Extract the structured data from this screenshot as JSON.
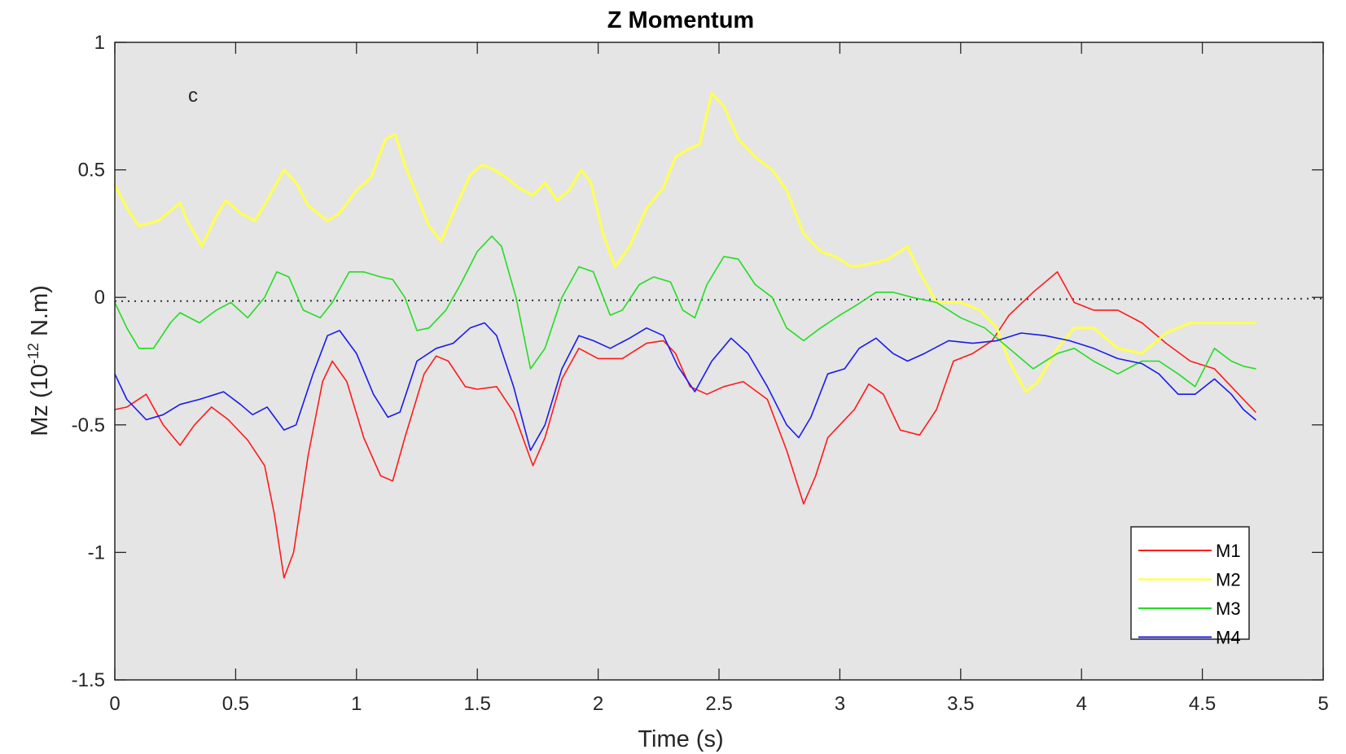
{
  "chart_data": {
    "type": "line",
    "title": "Z Momentum",
    "xlabel": "Time (s)",
    "ylabel": {
      "base": "Mz (10",
      "sup": "-12",
      "rest": " N.m)"
    },
    "xlim": [
      0,
      5
    ],
    "ylim": [
      -1.5,
      1
    ],
    "xticks": [
      0,
      0.5,
      1,
      1.5,
      2,
      2.5,
      3,
      3.5,
      4,
      4.5,
      5
    ],
    "xtick_labels": [
      "0",
      "0.5",
      "1",
      "1.5",
      "2",
      "2.5",
      "3",
      "3.5",
      "4",
      "4.5",
      "5"
    ],
    "yticks": [
      -1.5,
      -1,
      -0.5,
      0,
      0.5,
      1
    ],
    "ytick_labels": [
      "-1.5",
      "-1",
      "-0.5",
      "0",
      "0.5",
      "1"
    ],
    "grid": false,
    "background": "#e5e5e5",
    "annotation": "c",
    "reference_line": {
      "y0": -0.015,
      "y1": -0.005,
      "style": "dotted",
      "color": "#333333"
    },
    "legend": {
      "position": "bottom-right"
    },
    "series": [
      {
        "name": "M1",
        "color": "#ff1a1a",
        "width": 1.6,
        "points": [
          [
            0,
            -0.44
          ],
          [
            0.05,
            -0.43
          ],
          [
            0.13,
            -0.38
          ],
          [
            0.2,
            -0.5
          ],
          [
            0.27,
            -0.58
          ],
          [
            0.33,
            -0.5
          ],
          [
            0.4,
            -0.43
          ],
          [
            0.47,
            -0.48
          ],
          [
            0.55,
            -0.56
          ],
          [
            0.62,
            -0.66
          ],
          [
            0.66,
            -0.85
          ],
          [
            0.7,
            -1.1
          ],
          [
            0.74,
            -1.0
          ],
          [
            0.8,
            -0.62
          ],
          [
            0.86,
            -0.33
          ],
          [
            0.9,
            -0.25
          ],
          [
            0.96,
            -0.33
          ],
          [
            1.03,
            -0.55
          ],
          [
            1.1,
            -0.7
          ],
          [
            1.15,
            -0.72
          ],
          [
            1.2,
            -0.55
          ],
          [
            1.28,
            -0.3
          ],
          [
            1.33,
            -0.23
          ],
          [
            1.38,
            -0.25
          ],
          [
            1.45,
            -0.35
          ],
          [
            1.5,
            -0.36
          ],
          [
            1.58,
            -0.35
          ],
          [
            1.65,
            -0.45
          ],
          [
            1.73,
            -0.66
          ],
          [
            1.78,
            -0.55
          ],
          [
            1.85,
            -0.32
          ],
          [
            1.92,
            -0.2
          ],
          [
            2.0,
            -0.24
          ],
          [
            2.1,
            -0.24
          ],
          [
            2.2,
            -0.18
          ],
          [
            2.27,
            -0.17
          ],
          [
            2.32,
            -0.22
          ],
          [
            2.38,
            -0.35
          ],
          [
            2.45,
            -0.38
          ],
          [
            2.52,
            -0.35
          ],
          [
            2.6,
            -0.33
          ],
          [
            2.7,
            -0.4
          ],
          [
            2.78,
            -0.6
          ],
          [
            2.85,
            -0.81
          ],
          [
            2.9,
            -0.7
          ],
          [
            2.95,
            -0.55
          ],
          [
            3.0,
            -0.5
          ],
          [
            3.06,
            -0.44
          ],
          [
            3.12,
            -0.34
          ],
          [
            3.18,
            -0.38
          ],
          [
            3.25,
            -0.52
          ],
          [
            3.33,
            -0.54
          ],
          [
            3.4,
            -0.44
          ],
          [
            3.47,
            -0.25
          ],
          [
            3.55,
            -0.22
          ],
          [
            3.63,
            -0.17
          ],
          [
            3.7,
            -0.07
          ],
          [
            3.8,
            0.02
          ],
          [
            3.9,
            0.1
          ],
          [
            3.97,
            -0.02
          ],
          [
            4.05,
            -0.05
          ],
          [
            4.15,
            -0.05
          ],
          [
            4.25,
            -0.1
          ],
          [
            4.35,
            -0.18
          ],
          [
            4.45,
            -0.25
          ],
          [
            4.55,
            -0.28
          ],
          [
            4.65,
            -0.38
          ],
          [
            4.72,
            -0.45
          ]
        ]
      },
      {
        "name": "M2",
        "color": "#ffff55",
        "width": 3.2,
        "points": [
          [
            0,
            0.44
          ],
          [
            0.05,
            0.35
          ],
          [
            0.1,
            0.28
          ],
          [
            0.18,
            0.3
          ],
          [
            0.27,
            0.37
          ],
          [
            0.3,
            0.3
          ],
          [
            0.36,
            0.2
          ],
          [
            0.42,
            0.32
          ],
          [
            0.46,
            0.38
          ],
          [
            0.52,
            0.33
          ],
          [
            0.58,
            0.3
          ],
          [
            0.63,
            0.38
          ],
          [
            0.7,
            0.5
          ],
          [
            0.75,
            0.45
          ],
          [
            0.8,
            0.36
          ],
          [
            0.88,
            0.3
          ],
          [
            0.93,
            0.33
          ],
          [
            1.0,
            0.42
          ],
          [
            1.06,
            0.47
          ],
          [
            1.12,
            0.62
          ],
          [
            1.16,
            0.64
          ],
          [
            1.2,
            0.52
          ],
          [
            1.25,
            0.4
          ],
          [
            1.3,
            0.28
          ],
          [
            1.35,
            0.22
          ],
          [
            1.4,
            0.33
          ],
          [
            1.47,
            0.48
          ],
          [
            1.52,
            0.52
          ],
          [
            1.57,
            0.5
          ],
          [
            1.62,
            0.47
          ],
          [
            1.67,
            0.43
          ],
          [
            1.73,
            0.4
          ],
          [
            1.78,
            0.45
          ],
          [
            1.83,
            0.38
          ],
          [
            1.88,
            0.42
          ],
          [
            1.93,
            0.5
          ],
          [
            1.97,
            0.45
          ],
          [
            2.02,
            0.25
          ],
          [
            2.07,
            0.12
          ],
          [
            2.13,
            0.2
          ],
          [
            2.2,
            0.35
          ],
          [
            2.27,
            0.43
          ],
          [
            2.32,
            0.55
          ],
          [
            2.37,
            0.58
          ],
          [
            2.42,
            0.6
          ],
          [
            2.47,
            0.8
          ],
          [
            2.52,
            0.75
          ],
          [
            2.58,
            0.62
          ],
          [
            2.65,
            0.55
          ],
          [
            2.72,
            0.5
          ],
          [
            2.78,
            0.42
          ],
          [
            2.85,
            0.25
          ],
          [
            2.92,
            0.18
          ],
          [
            2.98,
            0.16
          ],
          [
            3.05,
            0.12
          ],
          [
            3.12,
            0.13
          ],
          [
            3.2,
            0.15
          ],
          [
            3.28,
            0.2
          ],
          [
            3.33,
            0.1
          ],
          [
            3.4,
            -0.02
          ],
          [
            3.5,
            -0.02
          ],
          [
            3.58,
            -0.05
          ],
          [
            3.65,
            -0.12
          ],
          [
            3.7,
            -0.25
          ],
          [
            3.77,
            -0.37
          ],
          [
            3.82,
            -0.33
          ],
          [
            3.9,
            -0.2
          ],
          [
            3.97,
            -0.12
          ],
          [
            4.05,
            -0.12
          ],
          [
            4.15,
            -0.2
          ],
          [
            4.25,
            -0.22
          ],
          [
            4.35,
            -0.14
          ],
          [
            4.45,
            -0.1
          ],
          [
            4.55,
            -0.1
          ],
          [
            4.65,
            -0.1
          ],
          [
            4.72,
            -0.1
          ]
        ]
      },
      {
        "name": "M3",
        "color": "#22dd22",
        "width": 1.6,
        "points": [
          [
            0,
            -0.02
          ],
          [
            0.05,
            -0.12
          ],
          [
            0.1,
            -0.2
          ],
          [
            0.16,
            -0.2
          ],
          [
            0.23,
            -0.1
          ],
          [
            0.27,
            -0.06
          ],
          [
            0.35,
            -0.1
          ],
          [
            0.42,
            -0.05
          ],
          [
            0.48,
            -0.02
          ],
          [
            0.55,
            -0.08
          ],
          [
            0.62,
            0.0
          ],
          [
            0.67,
            0.1
          ],
          [
            0.72,
            0.08
          ],
          [
            0.78,
            -0.05
          ],
          [
            0.85,
            -0.08
          ],
          [
            0.9,
            -0.02
          ],
          [
            0.97,
            0.1
          ],
          [
            1.03,
            0.1
          ],
          [
            1.1,
            0.08
          ],
          [
            1.15,
            0.07
          ],
          [
            1.2,
            0.0
          ],
          [
            1.25,
            -0.13
          ],
          [
            1.3,
            -0.12
          ],
          [
            1.37,
            -0.05
          ],
          [
            1.43,
            0.05
          ],
          [
            1.5,
            0.18
          ],
          [
            1.56,
            0.24
          ],
          [
            1.6,
            0.2
          ],
          [
            1.66,
            0.0
          ],
          [
            1.72,
            -0.28
          ],
          [
            1.78,
            -0.2
          ],
          [
            1.85,
            0.0
          ],
          [
            1.92,
            0.12
          ],
          [
            1.98,
            0.1
          ],
          [
            2.05,
            -0.07
          ],
          [
            2.1,
            -0.05
          ],
          [
            2.17,
            0.05
          ],
          [
            2.23,
            0.08
          ],
          [
            2.3,
            0.06
          ],
          [
            2.35,
            -0.05
          ],
          [
            2.4,
            -0.08
          ],
          [
            2.45,
            0.05
          ],
          [
            2.52,
            0.16
          ],
          [
            2.58,
            0.15
          ],
          [
            2.65,
            0.05
          ],
          [
            2.72,
            0.0
          ],
          [
            2.78,
            -0.12
          ],
          [
            2.85,
            -0.17
          ],
          [
            2.92,
            -0.12
          ],
          [
            3.0,
            -0.07
          ],
          [
            3.07,
            -0.03
          ],
          [
            3.15,
            0.02
          ],
          [
            3.22,
            0.02
          ],
          [
            3.3,
            0.0
          ],
          [
            3.4,
            -0.02
          ],
          [
            3.5,
            -0.08
          ],
          [
            3.6,
            -0.12
          ],
          [
            3.7,
            -0.2
          ],
          [
            3.8,
            -0.28
          ],
          [
            3.9,
            -0.22
          ],
          [
            3.97,
            -0.2
          ],
          [
            4.05,
            -0.25
          ],
          [
            4.15,
            -0.3
          ],
          [
            4.25,
            -0.25
          ],
          [
            4.32,
            -0.25
          ],
          [
            4.4,
            -0.3
          ],
          [
            4.47,
            -0.35
          ],
          [
            4.55,
            -0.2
          ],
          [
            4.62,
            -0.25
          ],
          [
            4.67,
            -0.27
          ],
          [
            4.72,
            -0.28
          ]
        ]
      },
      {
        "name": "M4",
        "color": "#1a1aee",
        "width": 1.6,
        "points": [
          [
            0,
            -0.3
          ],
          [
            0.05,
            -0.4
          ],
          [
            0.13,
            -0.48
          ],
          [
            0.2,
            -0.46
          ],
          [
            0.27,
            -0.42
          ],
          [
            0.35,
            -0.4
          ],
          [
            0.45,
            -0.37
          ],
          [
            0.52,
            -0.42
          ],
          [
            0.57,
            -0.46
          ],
          [
            0.63,
            -0.43
          ],
          [
            0.7,
            -0.52
          ],
          [
            0.75,
            -0.5
          ],
          [
            0.82,
            -0.3
          ],
          [
            0.88,
            -0.15
          ],
          [
            0.93,
            -0.13
          ],
          [
            1.0,
            -0.22
          ],
          [
            1.07,
            -0.38
          ],
          [
            1.13,
            -0.47
          ],
          [
            1.18,
            -0.45
          ],
          [
            1.25,
            -0.25
          ],
          [
            1.33,
            -0.2
          ],
          [
            1.4,
            -0.18
          ],
          [
            1.47,
            -0.12
          ],
          [
            1.53,
            -0.1
          ],
          [
            1.58,
            -0.15
          ],
          [
            1.65,
            -0.35
          ],
          [
            1.72,
            -0.6
          ],
          [
            1.78,
            -0.5
          ],
          [
            1.85,
            -0.28
          ],
          [
            1.92,
            -0.15
          ],
          [
            1.98,
            -0.17
          ],
          [
            2.05,
            -0.2
          ],
          [
            2.13,
            -0.16
          ],
          [
            2.2,
            -0.12
          ],
          [
            2.27,
            -0.15
          ],
          [
            2.33,
            -0.27
          ],
          [
            2.4,
            -0.37
          ],
          [
            2.47,
            -0.25
          ],
          [
            2.55,
            -0.16
          ],
          [
            2.62,
            -0.22
          ],
          [
            2.7,
            -0.35
          ],
          [
            2.78,
            -0.5
          ],
          [
            2.83,
            -0.55
          ],
          [
            2.88,
            -0.47
          ],
          [
            2.95,
            -0.3
          ],
          [
            3.02,
            -0.28
          ],
          [
            3.08,
            -0.2
          ],
          [
            3.15,
            -0.16
          ],
          [
            3.22,
            -0.22
          ],
          [
            3.28,
            -0.25
          ],
          [
            3.35,
            -0.22
          ],
          [
            3.45,
            -0.17
          ],
          [
            3.55,
            -0.18
          ],
          [
            3.65,
            -0.17
          ],
          [
            3.75,
            -0.14
          ],
          [
            3.85,
            -0.15
          ],
          [
            3.95,
            -0.17
          ],
          [
            4.05,
            -0.2
          ],
          [
            4.15,
            -0.24
          ],
          [
            4.25,
            -0.26
          ],
          [
            4.32,
            -0.3
          ],
          [
            4.4,
            -0.38
          ],
          [
            4.47,
            -0.38
          ],
          [
            4.55,
            -0.32
          ],
          [
            4.62,
            -0.38
          ],
          [
            4.67,
            -0.44
          ],
          [
            4.72,
            -0.48
          ]
        ]
      }
    ]
  }
}
